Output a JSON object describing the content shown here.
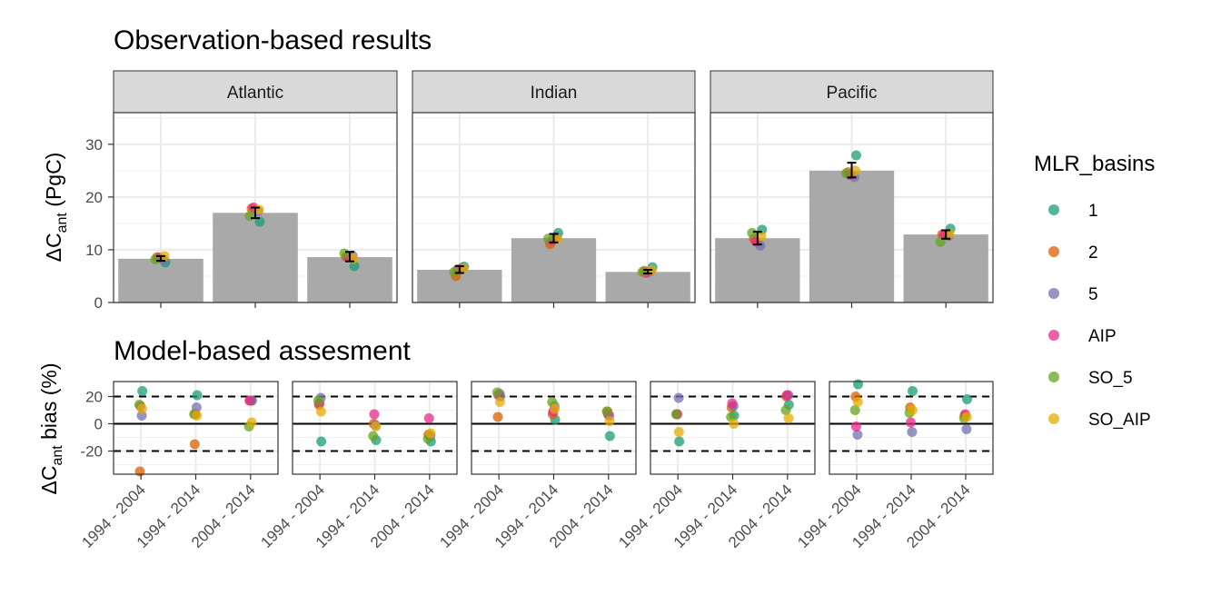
{
  "title_top": "Observation-based results",
  "title_bottom": "Model-based assesment",
  "legend": {
    "title": "MLR_basins",
    "entries": [
      {
        "label": "1",
        "color": "#1B9E77"
      },
      {
        "label": "2",
        "color": "#D95F02"
      },
      {
        "label": "5",
        "color": "#7570B3"
      },
      {
        "label": "AIP",
        "color": "#E7298A"
      },
      {
        "label": "SO_5",
        "color": "#66A61E"
      },
      {
        "label": "SO_AIP",
        "color": "#E6AB02"
      }
    ]
  },
  "chart_data": [
    {
      "type": "bar",
      "title": "Observation-based results",
      "ylabel_main": "ΔC",
      "ylabel_sub": "ant",
      "ylabel_rest": " (PgC)",
      "ylim": [
        0,
        36
      ],
      "yticks": [
        0,
        10,
        20,
        30
      ],
      "categories": [
        "1994 - 2004",
        "1994 - 2014",
        "2004 - 2014"
      ],
      "grid": true,
      "panels": [
        {
          "facet": "Atlantic",
          "bars": [
            8.3,
            17.0,
            8.6
          ],
          "errorbars": [
            [
              7.9,
              8.8
            ],
            [
              16.0,
              18.0
            ],
            [
              7.8,
              9.6
            ]
          ],
          "points": {
            "1": [
              7.6,
              15.3,
              6.9
            ],
            "2": [
              8.6,
              17.8,
              8.7
            ],
            "5": [
              8.1,
              17.3,
              8.9
            ],
            "AIP": [
              8.5,
              18.0,
              8.6
            ],
            "SO_5": [
              8.2,
              16.4,
              9.3
            ],
            "SO_AIP": [
              8.8,
              17.6,
              8.3
            ]
          }
        },
        {
          "facet": "Indian",
          "bars": [
            6.2,
            12.2,
            5.8
          ],
          "errorbars": [
            [
              5.6,
              6.9
            ],
            [
              11.4,
              13.0
            ],
            [
              5.5,
              6.2
            ]
          ],
          "points": {
            "1": [
              6.8,
              13.2,
              6.7
            ],
            "2": [
              5.0,
              11.1,
              6.0
            ],
            "5": [
              6.6,
              12.5,
              5.9
            ],
            "AIP": [
              6.3,
              11.7,
              5.6
            ],
            "SO_5": [
              5.8,
              12.1,
              5.8
            ],
            "SO_AIP": [
              6.5,
              12.1,
              6.1
            ]
          }
        },
        {
          "facet": "Pacific",
          "bars": [
            12.2,
            25.0,
            12.9
          ],
          "errorbars": [
            [
              11.0,
              13.4
            ],
            [
              23.7,
              26.5
            ],
            [
              12.1,
              13.7
            ]
          ],
          "points": {
            "1": [
              13.8,
              27.9,
              14.0
            ],
            "2": [
              12.1,
              24.7,
              12.9
            ],
            "5": [
              10.8,
              23.8,
              12.6
            ],
            "AIP": [
              11.6,
              24.2,
              12.8
            ],
            "SO_5": [
              13.2,
              24.5,
              11.5
            ],
            "SO_AIP": [
              12.6,
              25.0,
              13.0
            ]
          }
        }
      ]
    },
    {
      "type": "scatter",
      "title": "Model-based assesment",
      "ylabel_main": "ΔC",
      "ylabel_sub": "ant",
      "ylabel_rest": " bias (%)",
      "ylim": [
        -37,
        31
      ],
      "yticks": [
        -20,
        0,
        20
      ],
      "ytick_labels": [
        "-20",
        "0",
        "20"
      ],
      "reference_lines": {
        "dashed": [
          -20,
          20
        ],
        "solid": [
          0
        ]
      },
      "categories": [
        "1994 - 2004",
        "1994 - 2014",
        "2004 - 2014"
      ],
      "grid": true,
      "panels": [
        {
          "points": {
            "1": [
              24,
              21,
              17
            ],
            "2": [
              -35,
              -15,
              17
            ],
            "5": [
              6,
              12,
              17
            ],
            "AIP": [
              13,
              7,
              17
            ],
            "SO_5": [
              14,
              7,
              -2
            ],
            "SO_AIP": [
              11,
              6,
              1
            ]
          }
        },
        {
          "points": {
            "1": [
              -13,
              -12,
              -13
            ],
            "2": [
              14,
              0,
              -8
            ],
            "5": [
              19,
              -1,
              -9
            ],
            "AIP": [
              15,
              7,
              4
            ],
            "SO_5": [
              17,
              -9,
              -11
            ],
            "SO_AIP": [
              9,
              -2,
              -7
            ]
          }
        },
        {
          "points": {
            "1": [
              20,
              3,
              -9
            ],
            "2": [
              5,
              7,
              9
            ],
            "5": [
              22,
              13,
              6
            ],
            "AIP": [
              21,
              9,
              7
            ],
            "SO_5": [
              23,
              16,
              9
            ],
            "SO_AIP": [
              16,
              11,
              2
            ]
          }
        },
        {
          "points": {
            "1": [
              -13,
              6,
              14
            ],
            "2": [
              7,
              12,
              20
            ],
            "5": [
              19,
              13,
              21
            ],
            "AIP": [
              7,
              15,
              21
            ],
            "SO_5": [
              7,
              5,
              10
            ],
            "SO_AIP": [
              -6,
              0,
              4
            ]
          }
        },
        {
          "points": {
            "1": [
              29,
              24,
              18
            ],
            "2": [
              20,
              12,
              6
            ],
            "5": [
              -8,
              -6,
              -4
            ],
            "AIP": [
              -2,
              1,
              7
            ],
            "SO_5": [
              10,
              8,
              4
            ],
            "SO_AIP": [
              16,
              10,
              5
            ]
          }
        }
      ]
    }
  ]
}
